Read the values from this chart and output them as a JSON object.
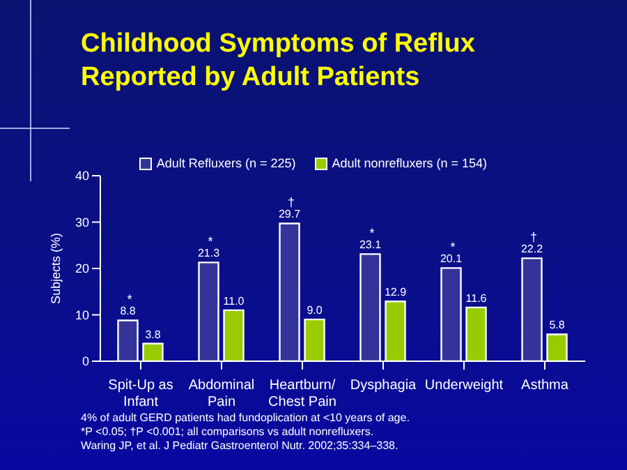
{
  "chart_data": {
    "type": "bar",
    "title": "Childhood Symptoms of Reflux Reported by Adult Patients",
    "ylabel": "Subjects (%)",
    "categories": [
      "Spit-Up as Infant",
      "Abdominal Pain",
      "Heartburn/ Chest Pain",
      "Dysphagia",
      "Underweight",
      "Asthma"
    ],
    "series": [
      {
        "name": "Adult Refluxers (n = 225)",
        "color": "#333399",
        "values": [
          8.8,
          21.3,
          29.7,
          23.1,
          20.1,
          22.2
        ],
        "value_labels": [
          "8.8",
          "21.3",
          "29.7",
          "23.1",
          "20.1",
          "22.2"
        ]
      },
      {
        "name": "Adult nonrefluxers (n = 154)",
        "color": "#99cc00",
        "values": [
          3.8,
          11.0,
          9.0,
          12.9,
          11.6,
          5.8
        ],
        "value_labels": [
          "3.8",
          "11.0",
          "9.0",
          "12.9",
          "11.6",
          "5.8"
        ]
      }
    ],
    "ylim": [
      0,
      40
    ],
    "yticks": [
      0,
      10,
      20,
      30,
      40
    ],
    "legend": "top",
    "annotations": [
      {
        "text": "*",
        "x": "Spit-Up as Infant",
        "y": 8.8
      },
      {
        "text": "*",
        "x": "Abdominal Pain",
        "y": 21.3
      },
      {
        "text": "†",
        "x": "Heartburn/ Chest Pain",
        "y": 29.7
      },
      {
        "text": "*",
        "x": "Dysphagia",
        "y": 23.1
      },
      {
        "text": "*",
        "x": "Underweight",
        "y": 20.1
      },
      {
        "text": "†",
        "x": "Asthma",
        "y": 22.2
      },
      "4% of adult GERD patients had fundoplication at <10 years of age.",
      "*P <0.05; †P <0.001; all comparisons vs adult nonrefluxers.",
      "Waring JP, et al. J Pediatr Gastroenterol Nutr. 2002;35:334–338."
    ]
  }
}
